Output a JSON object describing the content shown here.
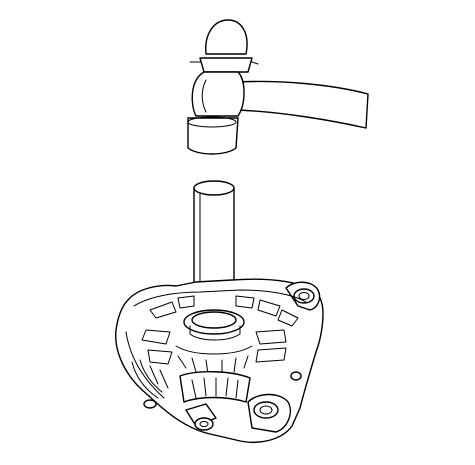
{
  "illustration": {
    "parts": [
      "hammer",
      "drift-tool",
      "alternator-housing"
    ],
    "colors": {
      "line": "#000000",
      "background": "#ffffff"
    }
  }
}
